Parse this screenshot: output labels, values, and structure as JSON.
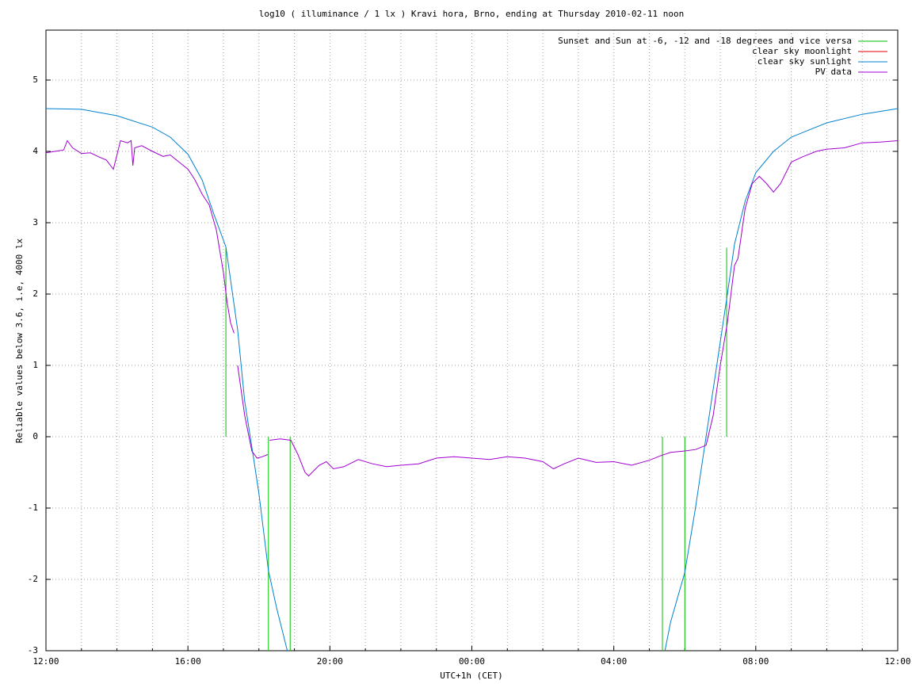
{
  "chart_data": {
    "type": "line",
    "title": "log10 ( illuminance / 1 lx ) Kravi hora, Brno, ending at Thursday 2010-02-11 noon",
    "xlabel": "UTC+1h (CET)",
    "ylabel": "Reliable values below 3.6, i.e, 4000 lx",
    "xlim": [
      12,
      36
    ],
    "ylim": [
      -3,
      5.7
    ],
    "xticks": [
      {
        "value": 12,
        "label": "12:00"
      },
      {
        "value": 16,
        "label": "16:00"
      },
      {
        "value": 20,
        "label": "20:00"
      },
      {
        "value": 24,
        "label": "00:00"
      },
      {
        "value": 28,
        "label": "04:00"
      },
      {
        "value": 32,
        "label": "08:00"
      },
      {
        "value": 36,
        "label": "12:00"
      }
    ],
    "xminorticks": [
      13,
      14,
      15,
      17,
      18,
      19,
      21,
      22,
      23,
      25,
      26,
      27,
      29,
      30,
      31,
      33,
      34,
      35
    ],
    "yticks": [
      -3,
      -2,
      -1,
      0,
      1,
      2,
      3,
      4,
      5
    ],
    "grid": true,
    "legend": "upper right",
    "series": [
      {
        "name": "Sunset and Sun at -6, -12 and -18 degrees and vice versa",
        "color": "#00c000",
        "x": [
          17.07,
          17.07,
          null,
          18.27,
          18.27,
          null,
          18.88,
          18.88,
          null,
          29.37,
          29.37,
          null,
          30.0,
          30.0,
          null,
          31.18,
          31.18
        ],
        "values": [
          2.65,
          0,
          null,
          0,
          -3,
          null,
          0,
          -3,
          null,
          0,
          -3,
          null,
          0,
          -3,
          null,
          0,
          2.65
        ]
      },
      {
        "name": "clear sky moonlight",
        "color": "#e00000",
        "x": [],
        "values": []
      },
      {
        "name": "clear sky sunlight",
        "color": "#0080d0",
        "x": [
          12,
          13,
          14,
          15,
          15.5,
          16,
          16.4,
          16.73,
          17.07,
          17.4,
          17.6,
          17.85,
          18.0,
          18.27,
          18.5,
          18.8,
          null,
          29.44,
          29.6,
          30.0,
          30.3,
          30.6,
          30.9,
          31.2,
          31.4,
          31.7,
          32.0,
          32.5,
          33,
          34,
          35,
          36
        ],
        "values": [
          4.6,
          4.59,
          4.5,
          4.34,
          4.2,
          3.96,
          3.6,
          3.12,
          2.66,
          1.5,
          0.5,
          -0.3,
          -0.8,
          -1.88,
          -2.4,
          -3,
          null,
          -3,
          -2.6,
          -1.9,
          -1.0,
          0,
          1.0,
          2.0,
          2.7,
          3.3,
          3.7,
          4.0,
          4.2,
          4.4,
          4.52,
          4.6
        ]
      },
      {
        "name": "PV data",
        "color": "#a000d0",
        "x": [
          12.0,
          12.25,
          12.5,
          12.6,
          12.75,
          13.0,
          13.25,
          13.5,
          13.7,
          13.9,
          14.0,
          14.1,
          14.3,
          14.4,
          14.45,
          14.5,
          14.7,
          15.0,
          15.3,
          15.5,
          15.75,
          16.0,
          16.2,
          16.4,
          16.6,
          16.8,
          17.0,
          17.1,
          17.2,
          17.3,
          null,
          17.4,
          17.6,
          17.8,
          17.95,
          18.1,
          18.25,
          null,
          18.3,
          18.6,
          18.9,
          19.1,
          19.3,
          19.4,
          19.7,
          19.9,
          20.1,
          20.4,
          20.8,
          21.2,
          21.6,
          22.0,
          22.5,
          23.0,
          23.5,
          24.0,
          24.5,
          25.0,
          25.5,
          26.0,
          26.3,
          26.6,
          27.0,
          27.5,
          28.0,
          28.5,
          29.0,
          29.3,
          29.6,
          30.0,
          30.3,
          30.6,
          30.8,
          31.0,
          31.2,
          31.4,
          31.5,
          31.7,
          31.9,
          32.1,
          32.3,
          32.5,
          32.7,
          33.0,
          33.3,
          33.7,
          34.0,
          34.5,
          35.0,
          35.5,
          36.0
        ],
        "values": [
          3.98,
          4.0,
          4.02,
          4.15,
          4.05,
          3.97,
          3.98,
          3.92,
          3.88,
          3.75,
          3.95,
          4.15,
          4.12,
          4.15,
          3.8,
          4.05,
          4.08,
          4.0,
          3.93,
          3.95,
          3.85,
          3.75,
          3.6,
          3.4,
          3.25,
          2.9,
          2.3,
          1.9,
          1.6,
          1.45,
          null,
          1.0,
          0.3,
          -0.2,
          -0.3,
          -0.28,
          -0.25,
          null,
          -0.05,
          -0.03,
          -0.05,
          -0.25,
          -0.5,
          -0.55,
          -0.4,
          -0.35,
          -0.45,
          -0.42,
          -0.32,
          -0.38,
          -0.42,
          -0.4,
          -0.38,
          -0.3,
          -0.28,
          -0.3,
          -0.32,
          -0.28,
          -0.3,
          -0.35,
          -0.45,
          -0.38,
          -0.3,
          -0.36,
          -0.35,
          -0.4,
          -0.33,
          -0.27,
          -0.22,
          -0.2,
          -0.18,
          -0.12,
          0.3,
          1.0,
          1.6,
          2.4,
          2.5,
          3.2,
          3.55,
          3.65,
          3.55,
          3.43,
          3.55,
          3.85,
          3.92,
          4.0,
          4.03,
          4.05,
          4.12,
          4.13,
          4.15
        ]
      }
    ]
  }
}
